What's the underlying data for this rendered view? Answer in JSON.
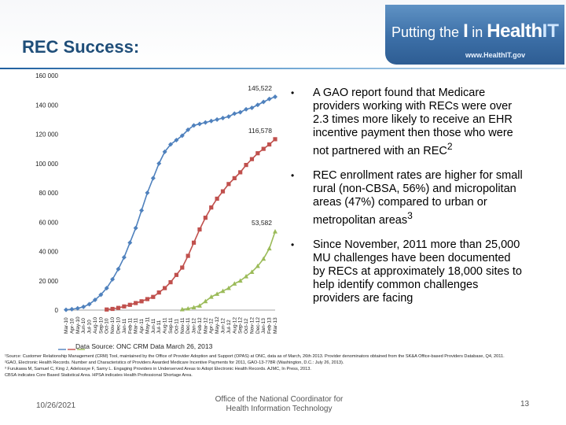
{
  "header": {
    "title": "REC Success:",
    "brand_line_prefix": "Putting the ",
    "brand_line_i": "I",
    "brand_line_mid": " in ",
    "brand_line_health": "Health",
    "brand_line_it": "IT",
    "brand_url": "www.HealthIT.gov"
  },
  "bullets": [
    {
      "text": "A GAO report found that Medicare providers working with RECs were over 2.3 times more likely to receive an EHR incentive payment then those who were not partnered with an REC",
      "sup": "2"
    },
    {
      "text": "REC enrollment rates are higher for small rural (non-CBSA, 56%) and micropolitan areas (47%) compared to urban or metropolitan areas",
      "sup": "3"
    },
    {
      "text": "Since November, 2011 more than 25,000 MU challenges have been documented by RECs at approximately 18,000 sites to help identify common challenges providers are facing",
      "sup": ""
    }
  ],
  "chart_data": {
    "type": "line",
    "data_source": "Data Source: ONC CRM Data March 26, 2013",
    "ylim": [
      0,
      160000
    ],
    "yticks": [
      "0",
      "20 000",
      "40 000",
      "60 000",
      "80 000",
      "100 000",
      "120 000",
      "140 000",
      "160 000"
    ],
    "x": [
      "Mar-10",
      "Apr-10",
      "May-10",
      "Jun-10",
      "Jul-10",
      "Aug-10",
      "Sep-10",
      "Oct-10",
      "Nov-10",
      "Dec-10",
      "Jan-11",
      "Feb-11",
      "Mar-11",
      "Apr-11",
      "May-11",
      "Jun-11",
      "Jul-11",
      "Aug-11",
      "Sep-11",
      "Oct-11",
      "Nov-11",
      "Dec-11",
      "Jan-12",
      "Feb-12",
      "Mar-12",
      "Apr-12",
      "May-12",
      "Jun-12",
      "Jul-12",
      "Aug-12",
      "Sep-12",
      "Oct-12",
      "Nov-12",
      "Dec-12",
      "Jan-13",
      "Feb-13",
      "Mar-13"
    ],
    "series": [
      {
        "color": "#4f81bd",
        "marker": "diamond",
        "end_label": "145,522",
        "values": [
          200,
          600,
          1200,
          2200,
          4000,
          7000,
          10500,
          15000,
          21000,
          28000,
          36000,
          46000,
          56000,
          68000,
          80000,
          90000,
          100000,
          108000,
          113000,
          116000,
          119000,
          123000,
          126000,
          127000,
          128000,
          129000,
          130000,
          131000,
          132000,
          134000,
          135000,
          137000,
          138000,
          140000,
          142000,
          144000,
          145522
        ]
      },
      {
        "color": "#c0504d",
        "marker": "square",
        "end_label": "116,578",
        "values": [
          null,
          null,
          null,
          null,
          null,
          null,
          null,
          400,
          800,
          1500,
          2500,
          3600,
          4800,
          6000,
          7500,
          9000,
          12000,
          15000,
          19000,
          24000,
          29000,
          37000,
          46000,
          55000,
          63000,
          70000,
          76000,
          81000,
          86000,
          90000,
          94000,
          99000,
          103000,
          107000,
          110000,
          113000,
          116578
        ]
      },
      {
        "color": "#9bbb59",
        "marker": "triangle",
        "end_label": "53,582",
        "values": [
          null,
          null,
          null,
          null,
          null,
          null,
          null,
          null,
          null,
          null,
          null,
          null,
          null,
          null,
          null,
          null,
          null,
          null,
          null,
          null,
          500,
          1000,
          1800,
          3000,
          6000,
          9000,
          11000,
          13000,
          15000,
          18000,
          20000,
          23000,
          26000,
          30000,
          35000,
          42000,
          53582
        ]
      }
    ]
  },
  "footnote": {
    "line1": "¹Source: Customer Relationship Management (CRM) Tool, maintained by the Office of Provider Adoption and Support (OPAS) at ONC, data as of March, 26th 2013. Provider denominators obtained from the SK&A Office-based Providers Database, Q4, 2011.",
    "line2": "²GAO, Electronic Health Records. Number and Characteristics of Providers Awarded Medicare Incentive Payments for 2011, GAO-13-778R (Washington, D.C.: July 26, 2013).",
    "line3": "³ Furukawa M, Samuel C, King J, Adelossye F, Samy L. Engaging Providers in Underserved Areas to Adopt Electronic Health Records. AJMC, In Press, 2013.",
    "line4": "CBSA indicates Core Based Statistical Area. HPSA indicates Health Professional Shortage Area."
  },
  "footer": {
    "date": "10/26/2021",
    "org_line1": "Office of the National Coordinator for",
    "org_line2": "Health Information Technology",
    "page": "13"
  }
}
